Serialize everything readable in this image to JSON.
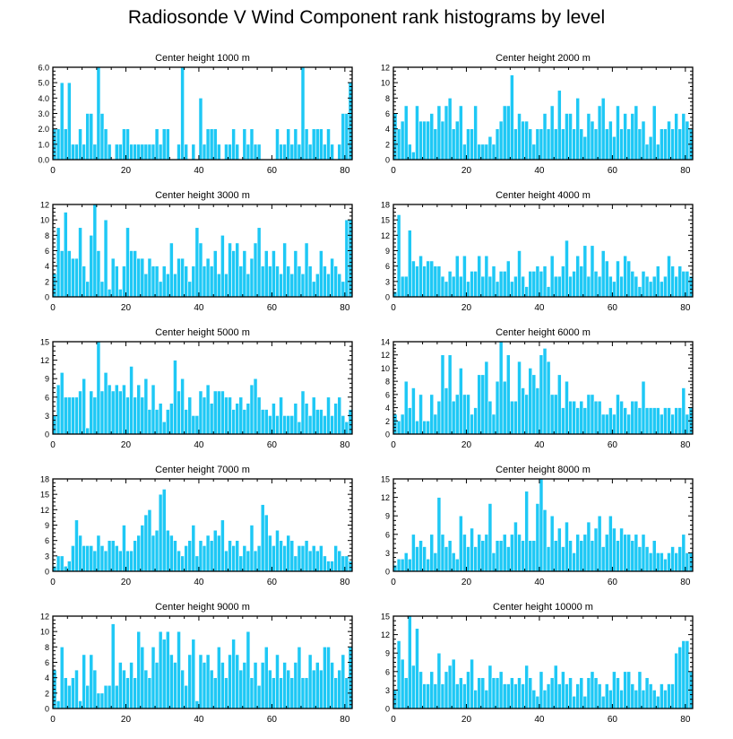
{
  "figure_title": "Radiosonde V Wind Component rank histograms by level",
  "colors": {
    "bar": "#1ec8f5",
    "bar_edge": "#ffffff",
    "axis": "#000000"
  },
  "chart_data": [
    {
      "type": "bar",
      "title": "Center height 1000 m",
      "xlabel": "",
      "ylabel": "",
      "xlim": [
        0,
        82
      ],
      "xticks": [
        0,
        20,
        40,
        60,
        80
      ],
      "ylim": [
        0,
        6
      ],
      "yticks": [
        "0.0",
        "1.0",
        "2.0",
        "3.0",
        "4.0",
        "5.0",
        "6.0"
      ],
      "values": [
        2,
        2,
        5,
        2,
        5,
        1,
        1,
        2,
        1,
        3,
        3,
        1,
        6,
        3,
        2,
        1,
        0,
        1,
        1,
        2,
        2,
        1,
        1,
        1,
        1,
        1,
        1,
        1,
        2,
        1,
        2,
        2,
        0,
        0,
        1,
        6,
        1,
        0,
        1,
        0,
        4,
        1,
        2,
        2,
        2,
        1,
        0,
        1,
        1,
        2,
        1,
        0,
        2,
        1,
        2,
        1,
        1,
        0,
        0,
        0,
        0,
        2,
        1,
        1,
        2,
        1,
        2,
        1,
        6,
        2,
        1,
        2,
        2,
        2,
        1,
        2,
        1,
        0,
        1,
        3,
        3,
        5
      ]
    },
    {
      "type": "bar",
      "title": "Center height 2000 m",
      "xlabel": "",
      "ylabel": "",
      "xlim": [
        0,
        82
      ],
      "xticks": [
        0,
        20,
        40,
        60,
        80
      ],
      "ylim": [
        0,
        12
      ],
      "yticks": [
        "0",
        "2",
        "4",
        "6",
        "8",
        "10",
        "12"
      ],
      "values": [
        6,
        4,
        5,
        7,
        2,
        1,
        7,
        5,
        5,
        5,
        6,
        4,
        7,
        5,
        7,
        8,
        4,
        5,
        7,
        2,
        4,
        4,
        7,
        2,
        2,
        2,
        3,
        2,
        4,
        5,
        7,
        7,
        11,
        4,
        6,
        5,
        5,
        4,
        2,
        4,
        4,
        6,
        4,
        7,
        4,
        9,
        4,
        6,
        6,
        4,
        8,
        4,
        3,
        6,
        5,
        4,
        7,
        8,
        4,
        5,
        3,
        7,
        4,
        6,
        4,
        6,
        7,
        4,
        5,
        2,
        3,
        7,
        2,
        4,
        4,
        5,
        4,
        6,
        4,
        6,
        5,
        4
      ]
    },
    {
      "type": "bar",
      "title": "Center height 3000 m",
      "xlabel": "",
      "ylabel": "",
      "xlim": [
        0,
        82
      ],
      "xticks": [
        0,
        20,
        40,
        60,
        80
      ],
      "ylim": [
        0,
        12
      ],
      "yticks": [
        "0",
        "2",
        "4",
        "6",
        "8",
        "10",
        "12"
      ],
      "values": [
        3,
        9,
        6,
        11,
        6,
        5,
        5,
        9,
        4,
        2,
        8,
        12,
        6,
        2,
        10,
        1,
        5,
        4,
        1,
        4,
        9,
        6,
        6,
        5,
        5,
        3,
        5,
        4,
        4,
        2,
        4,
        3,
        7,
        3,
        5,
        5,
        4,
        2,
        4,
        9,
        7,
        4,
        5,
        4,
        6,
        3,
        8,
        3,
        7,
        6,
        7,
        4,
        6,
        3,
        5,
        7,
        9,
        4,
        6,
        4,
        6,
        4,
        3,
        7,
        4,
        3,
        6,
        4,
        3,
        7,
        4,
        2,
        3,
        6,
        4,
        3,
        5,
        4,
        3,
        2,
        10,
        10
      ]
    },
    {
      "type": "bar",
      "title": "Center height 4000 m",
      "xlabel": "",
      "ylabel": "",
      "xlim": [
        0,
        82
      ],
      "xticks": [
        0,
        20,
        40,
        60,
        80
      ],
      "ylim": [
        0,
        18
      ],
      "yticks": [
        "0",
        "3",
        "6",
        "9",
        "12",
        "15",
        "18"
      ],
      "values": [
        1,
        16,
        4,
        4,
        13,
        7,
        6,
        8,
        6,
        7,
        7,
        6,
        6,
        4,
        3,
        5,
        4,
        8,
        4,
        8,
        3,
        5,
        5,
        8,
        4,
        8,
        4,
        6,
        3,
        5,
        5,
        7,
        3,
        4,
        9,
        4,
        2,
        5,
        5,
        6,
        5,
        6,
        2,
        8,
        4,
        4,
        6,
        11,
        4,
        5,
        8,
        6,
        10,
        4,
        10,
        5,
        4,
        9,
        7,
        4,
        3,
        7,
        4,
        8,
        7,
        5,
        4,
        2,
        5,
        4,
        3,
        4,
        6,
        3,
        4,
        8,
        6,
        4,
        6,
        5,
        5,
        4
      ]
    },
    {
      "type": "bar",
      "title": "Center height 5000 m",
      "xlabel": "",
      "ylabel": "",
      "xlim": [
        0,
        82
      ],
      "xticks": [
        0,
        20,
        40,
        60,
        80
      ],
      "ylim": [
        0,
        15
      ],
      "yticks": [
        "0",
        "3",
        "6",
        "9",
        "12",
        "15"
      ],
      "values": [
        3,
        8,
        10,
        6,
        6,
        6,
        6,
        7,
        9,
        1,
        7,
        6,
        15,
        7,
        10,
        8,
        7,
        8,
        7,
        8,
        6,
        11,
        6,
        8,
        6,
        9,
        4,
        8,
        4,
        5,
        2,
        4,
        5,
        12,
        7,
        9,
        4,
        6,
        3,
        3,
        7,
        6,
        8,
        5,
        7,
        7,
        7,
        6,
        6,
        4,
        5,
        6,
        4,
        5,
        8,
        9,
        6,
        4,
        4,
        3,
        5,
        3,
        6,
        3,
        3,
        3,
        5,
        2,
        7,
        5,
        3,
        6,
        4,
        4,
        3,
        6,
        3,
        5,
        6,
        3,
        2,
        4
      ]
    },
    {
      "type": "bar",
      "title": "Center height 6000 m",
      "xlabel": "",
      "ylabel": "",
      "xlim": [
        0,
        82
      ],
      "xticks": [
        0,
        20,
        40,
        60,
        80
      ],
      "ylim": [
        0,
        14
      ],
      "yticks": [
        "0",
        "2",
        "4",
        "6",
        "8",
        "10",
        "12",
        "14"
      ],
      "values": [
        3,
        2,
        3,
        8,
        4,
        7,
        2,
        6,
        2,
        2,
        6,
        3,
        5,
        12,
        7,
        12,
        5,
        6,
        10,
        6,
        6,
        3,
        4,
        9,
        9,
        11,
        5,
        3,
        8,
        14,
        8,
        12,
        5,
        5,
        11,
        7,
        6,
        10,
        9,
        7,
        12,
        13,
        11,
        6,
        6,
        9,
        4,
        8,
        5,
        5,
        4,
        5,
        4,
        6,
        6,
        5,
        5,
        3,
        3,
        4,
        3,
        6,
        5,
        4,
        3,
        5,
        5,
        4,
        8,
        4,
        4,
        4,
        4,
        3,
        4,
        4,
        3,
        4,
        4,
        7,
        3,
        4
      ]
    },
    {
      "type": "bar",
      "title": "Center height 7000 m",
      "xlabel": "",
      "ylabel": "",
      "xlim": [
        0,
        82
      ],
      "xticks": [
        0,
        20,
        40,
        60,
        80
      ],
      "ylim": [
        0,
        18
      ],
      "yticks": [
        "0",
        "3",
        "6",
        "9",
        "12",
        "15",
        "18"
      ],
      "values": [
        1,
        3,
        3,
        1,
        2,
        5,
        10,
        7,
        5,
        5,
        5,
        4,
        7,
        5,
        4,
        6,
        6,
        5,
        4,
        9,
        4,
        4,
        6,
        7,
        9,
        11,
        12,
        7,
        8,
        15,
        16,
        8,
        7,
        6,
        4,
        3,
        5,
        6,
        9,
        3,
        6,
        5,
        7,
        6,
        8,
        7,
        10,
        4,
        6,
        5,
        6,
        3,
        5,
        4,
        9,
        4,
        5,
        13,
        11,
        7,
        5,
        8,
        6,
        5,
        7,
        6,
        3,
        5,
        5,
        6,
        4,
        5,
        4,
        5,
        3,
        2,
        2,
        5,
        4,
        3,
        3,
        2
      ]
    },
    {
      "type": "bar",
      "title": "Center height 8000 m",
      "xlabel": "",
      "ylabel": "",
      "xlim": [
        0,
        82
      ],
      "xticks": [
        0,
        20,
        40,
        60,
        80
      ],
      "ylim": [
        0,
        15
      ],
      "yticks": [
        "0",
        "3",
        "6",
        "9",
        "12",
        "15"
      ],
      "values": [
        1,
        2,
        2,
        3,
        2,
        6,
        4,
        5,
        4,
        2,
        6,
        3,
        12,
        6,
        4,
        5,
        3,
        2,
        9,
        6,
        4,
        7,
        4,
        6,
        5,
        6,
        11,
        3,
        5,
        5,
        6,
        4,
        6,
        8,
        6,
        5,
        13,
        5,
        5,
        11,
        15,
        10,
        4,
        9,
        5,
        7,
        4,
        8,
        5,
        3,
        6,
        5,
        6,
        8,
        5,
        7,
        9,
        4,
        6,
        9,
        7,
        5,
        7,
        6,
        6,
        5,
        6,
        4,
        6,
        4,
        3,
        5,
        3,
        3,
        2,
        3,
        4,
        3,
        4,
        6,
        3,
        3
      ]
    },
    {
      "type": "bar",
      "title": "Center height 9000 m",
      "xlabel": "",
      "ylabel": "",
      "xlim": [
        0,
        82
      ],
      "xticks": [
        0,
        20,
        40,
        60,
        80
      ],
      "ylim": [
        0,
        12
      ],
      "yticks": [
        "0",
        "2",
        "4",
        "6",
        "8",
        "10",
        "12"
      ],
      "values": [
        5,
        1,
        8,
        4,
        3,
        4,
        5,
        1,
        7,
        3,
        7,
        5,
        2,
        2,
        3,
        3,
        11,
        3,
        6,
        5,
        4,
        6,
        4,
        10,
        8,
        5,
        4,
        8,
        6,
        10,
        9,
        10,
        7,
        6,
        10,
        5,
        3,
        7,
        9,
        1,
        7,
        6,
        7,
        5,
        4,
        8,
        6,
        4,
        7,
        9,
        7,
        5,
        6,
        10,
        4,
        6,
        3,
        6,
        8,
        5,
        4,
        7,
        4,
        6,
        5,
        4,
        6,
        8,
        4,
        4,
        7,
        5,
        6,
        5,
        8,
        8,
        6,
        4,
        5,
        7,
        4,
        8
      ]
    },
    {
      "type": "bar",
      "title": "Center height 10000 m",
      "xlabel": "",
      "ylabel": "",
      "xlim": [
        0,
        82
      ],
      "xticks": [
        0,
        20,
        40,
        60,
        80
      ],
      "ylim": [
        0,
        15
      ],
      "yticks": [
        "0",
        "3",
        "6",
        "9",
        "12",
        "15"
      ],
      "values": [
        3,
        11,
        8,
        5,
        15,
        7,
        13,
        6,
        4,
        4,
        6,
        4,
        9,
        4,
        6,
        7,
        8,
        4,
        5,
        4,
        6,
        8,
        3,
        5,
        5,
        3,
        7,
        5,
        5,
        6,
        4,
        4,
        5,
        4,
        5,
        4,
        7,
        5,
        3,
        2,
        6,
        3,
        4,
        5,
        7,
        4,
        6,
        4,
        5,
        2,
        4,
        5,
        2,
        5,
        6,
        5,
        4,
        2,
        4,
        3,
        6,
        5,
        3,
        6,
        6,
        4,
        3,
        6,
        3,
        5,
        4,
        3,
        2,
        4,
        3,
        4,
        4,
        9,
        10,
        11,
        11,
        6
      ]
    }
  ]
}
